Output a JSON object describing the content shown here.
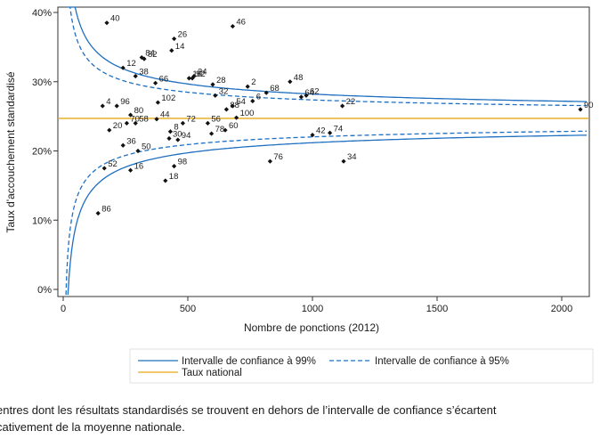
{
  "chart_data": {
    "type": "scatter",
    "title": "",
    "xlabel": "Nombre de ponctions (2012)",
    "ylabel": "Taux d'accouchement standardisé",
    "xlim": [
      0,
      2100
    ],
    "ylim": [
      0,
      40
    ],
    "x_ticks": [
      0,
      500,
      1000,
      1500,
      2000
    ],
    "x_tick_labels": [
      "0",
      "500",
      "1000",
      "1500",
      "2000"
    ],
    "y_ticks": [
      0,
      10,
      20,
      30,
      40
    ],
    "y_tick_labels": [
      "0%",
      "10%",
      "20%",
      "30%",
      "40%"
    ],
    "national_rate": 24.7,
    "national_line_color": "#e6a817",
    "ci_color": "#1f6fc0",
    "grid": false,
    "points": [
      {
        "label": "40",
        "x": 175,
        "y": 38.5
      },
      {
        "label": "46",
        "x": 680,
        "y": 38.0
      },
      {
        "label": "26",
        "x": 445,
        "y": 36.2
      },
      {
        "label": "14",
        "x": 435,
        "y": 34.5
      },
      {
        "label": "84",
        "x": 315,
        "y": 33.5
      },
      {
        "label": "82",
        "x": 325,
        "y": 33.3
      },
      {
        "label": "12",
        "x": 240,
        "y": 32.0
      },
      {
        "label": "24",
        "x": 525,
        "y": 30.8
      },
      {
        "label": "38",
        "x": 290,
        "y": 30.8
      },
      {
        "label": "10",
        "x": 505,
        "y": 30.5
      },
      {
        "label": "92",
        "x": 518,
        "y": 30.5
      },
      {
        "label": "48",
        "x": 910,
        "y": 30.0
      },
      {
        "label": "66",
        "x": 370,
        "y": 29.8
      },
      {
        "label": "28",
        "x": 600,
        "y": 29.6
      },
      {
        "label": "2",
        "x": 740,
        "y": 29.3
      },
      {
        "label": "68",
        "x": 815,
        "y": 28.4
      },
      {
        "label": "32",
        "x": 610,
        "y": 28.0
      },
      {
        "label": "62",
        "x": 975,
        "y": 28.0
      },
      {
        "label": "6",
        "x": 760,
        "y": 27.2
      },
      {
        "label": "102",
        "x": 380,
        "y": 27.0
      },
      {
        "label": "64",
        "x": 955,
        "y": 27.8
      },
      {
        "label": "4",
        "x": 158,
        "y": 26.5
      },
      {
        "label": "96",
        "x": 215,
        "y": 26.5
      },
      {
        "label": "54",
        "x": 680,
        "y": 26.5
      },
      {
        "label": "22",
        "x": 1120,
        "y": 26.5
      },
      {
        "label": "88",
        "x": 655,
        "y": 26.0
      },
      {
        "label": "90",
        "x": 2075,
        "y": 26.0
      },
      {
        "label": "80",
        "x": 270,
        "y": 25.2
      },
      {
        "label": "100",
        "x": 695,
        "y": 24.8
      },
      {
        "label": "44",
        "x": 375,
        "y": 24.6
      },
      {
        "label": "70",
        "x": 255,
        "y": 24.0
      },
      {
        "label": "58",
        "x": 290,
        "y": 24.0
      },
      {
        "label": "72",
        "x": 480,
        "y": 24.0
      },
      {
        "label": "56",
        "x": 580,
        "y": 24.0
      },
      {
        "label": "20",
        "x": 185,
        "y": 23.0
      },
      {
        "label": "8",
        "x": 430,
        "y": 22.8
      },
      {
        "label": "60",
        "x": 650,
        "y": 23.0
      },
      {
        "label": "78",
        "x": 595,
        "y": 22.5
      },
      {
        "label": "42",
        "x": 1000,
        "y": 22.3
      },
      {
        "label": "74",
        "x": 1070,
        "y": 22.6
      },
      {
        "label": "30",
        "x": 425,
        "y": 21.8
      },
      {
        "label": "94",
        "x": 460,
        "y": 21.6
      },
      {
        "label": "36",
        "x": 240,
        "y": 20.8
      },
      {
        "label": "50",
        "x": 300,
        "y": 20.0
      },
      {
        "label": "76",
        "x": 830,
        "y": 18.5
      },
      {
        "label": "34",
        "x": 1125,
        "y": 18.5
      },
      {
        "label": "98",
        "x": 445,
        "y": 17.8
      },
      {
        "label": "52",
        "x": 165,
        "y": 17.5
      },
      {
        "label": "16",
        "x": 270,
        "y": 17.2
      },
      {
        "label": "18",
        "x": 410,
        "y": 15.7
      },
      {
        "label": "86",
        "x": 140,
        "y": 11.0
      }
    ],
    "legend": [
      {
        "label": "Intervalle de confiance à 99%",
        "style": "solid",
        "color": "#1f6fc0"
      },
      {
        "label": "Intervalle de confiance à 95%",
        "style": "dashed",
        "color": "#1f6fc0"
      },
      {
        "label": "Taux national",
        "style": "solid",
        "color": "#e6a817"
      }
    ],
    "legend_position": "bottom"
  },
  "caption": "entres dont les résultats standardisés se trouvent en dehors de l’intervalle de confiance s’écartent\ncativement de la moyenne nationale."
}
